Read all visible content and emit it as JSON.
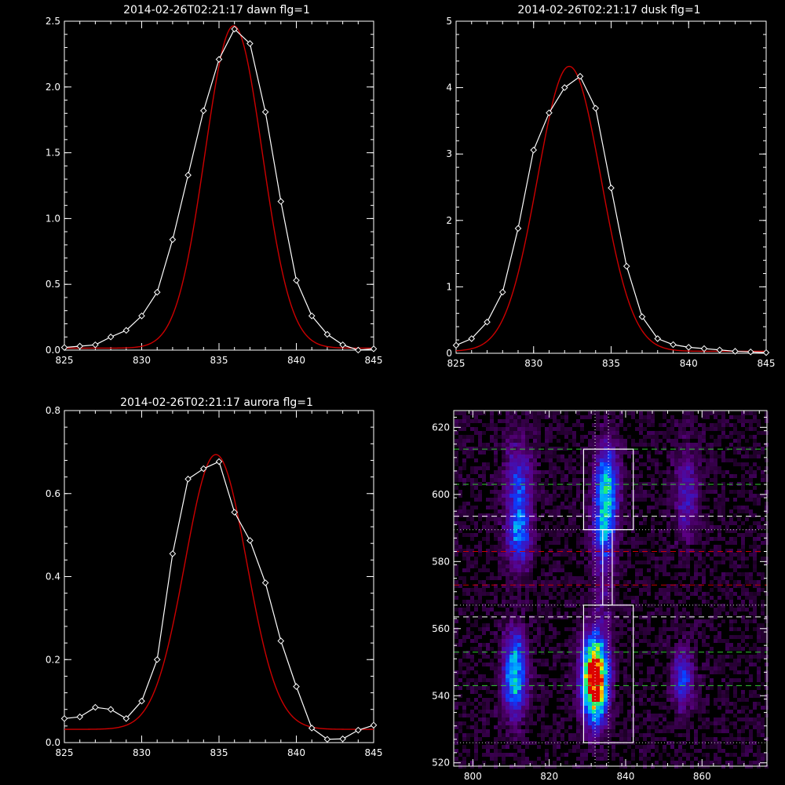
{
  "chart_data": [
    {
      "type": "line",
      "title": "2014-02-26T02:21:17 dawn flg=1",
      "xlim": [
        825,
        845
      ],
      "ylim": [
        0,
        2.5
      ],
      "xticks": [
        825,
        830,
        835,
        840,
        845
      ],
      "yticks": [
        0.0,
        0.5,
        1.0,
        1.5,
        2.0,
        2.5
      ],
      "xticklabels": [
        "825",
        "830",
        "835",
        "840",
        "845"
      ],
      "yticklabels": [
        "0.0",
        "0.5",
        "1.0",
        "1.5",
        "2.0",
        "2.5"
      ],
      "colors": {
        "data": "#ffffff",
        "fit": "#cc0000"
      },
      "data_line": {
        "x": [
          825,
          826,
          827,
          828,
          829,
          830,
          831,
          832,
          833,
          834,
          835,
          836,
          837,
          838,
          839,
          840,
          841,
          842,
          843,
          844,
          845
        ],
        "y": [
          0.02,
          0.03,
          0.04,
          0.1,
          0.15,
          0.26,
          0.44,
          0.84,
          1.33,
          1.82,
          2.21,
          2.44,
          2.33,
          1.81,
          1.13,
          0.53,
          0.26,
          0.12,
          0.04,
          0.0,
          0.01
        ]
      },
      "fit": {
        "amplitude": 2.45,
        "center": 835.95,
        "sigma": 1.85,
        "baseline": 0.015
      }
    },
    {
      "type": "line",
      "title": "2014-02-26T02:21:17 dusk flg=1",
      "xlim": [
        825,
        845
      ],
      "ylim": [
        0,
        5
      ],
      "xticks": [
        825,
        830,
        835,
        840,
        845
      ],
      "yticks": [
        0,
        1,
        2,
        3,
        4,
        5
      ],
      "xticklabels": [
        "825",
        "830",
        "835",
        "840",
        "845"
      ],
      "yticklabels": [
        "0",
        "1",
        "2",
        "3",
        "4",
        "5"
      ],
      "colors": {
        "data": "#ffffff",
        "fit": "#cc0000"
      },
      "data_line": {
        "x": [
          825,
          826,
          827,
          828,
          829,
          830,
          831,
          832,
          833,
          834,
          835,
          836,
          837,
          838,
          839,
          840,
          841,
          842,
          843,
          844,
          845
        ],
        "y": [
          0.12,
          0.22,
          0.47,
          0.92,
          1.88,
          3.06,
          3.62,
          4.0,
          4.17,
          3.69,
          2.49,
          1.31,
          0.55,
          0.22,
          0.13,
          0.09,
          0.07,
          0.05,
          0.03,
          0.02,
          0.01
        ]
      },
      "fit": {
        "amplitude": 4.29,
        "center": 832.3,
        "sigma": 2.05,
        "baseline": 0.03
      }
    },
    {
      "type": "line",
      "title": "2014-02-26T02:21:17 aurora flg=1",
      "xlim": [
        825,
        845
      ],
      "ylim": [
        0,
        0.8
      ],
      "xticks": [
        825,
        830,
        835,
        840,
        845
      ],
      "yticks": [
        0.0,
        0.2,
        0.4,
        0.6,
        0.8
      ],
      "xticklabels": [
        "825",
        "830",
        "835",
        "840",
        "845"
      ],
      "yticklabels": [
        "0.0",
        "0.2",
        "0.4",
        "0.6",
        "0.8"
      ],
      "colors": {
        "data": "#ffffff",
        "fit": "#cc0000"
      },
      "data_line": {
        "x": [
          825,
          826,
          827,
          828,
          829,
          830,
          831,
          832,
          833,
          834,
          835,
          836,
          837,
          838,
          839,
          840,
          841,
          842,
          843,
          844,
          845
        ],
        "y": [
          0.058,
          0.062,
          0.085,
          0.08,
          0.058,
          0.1,
          0.2,
          0.455,
          0.635,
          0.66,
          0.677,
          0.555,
          0.487,
          0.385,
          0.245,
          0.135,
          0.035,
          0.008,
          0.009,
          0.03,
          0.042
        ]
      },
      "fit": {
        "amplitude": 0.662,
        "center": 834.8,
        "sigma": 2.0,
        "baseline": 0.032
      }
    },
    {
      "type": "heatmap",
      "title": "",
      "xlim": [
        795,
        877
      ],
      "ylim": [
        519,
        625
      ],
      "xticks": [
        800,
        820,
        840,
        860
      ],
      "yticks": [
        520,
        540,
        560,
        580,
        600,
        620
      ],
      "xticklabels": [
        "800",
        "820",
        "840",
        "860"
      ],
      "yticklabels": [
        "520",
        "540",
        "560",
        "580",
        "600",
        "620"
      ],
      "blobs": [
        {
          "x": 811,
          "y": 544,
          "sx": 2.2,
          "sy": 7,
          "amp": 0.58
        },
        {
          "x": 811,
          "y": 555,
          "sx": 2.0,
          "sy": 5,
          "amp": 0.25
        },
        {
          "x": 812,
          "y": 598,
          "sx": 2.4,
          "sy": 12,
          "amp": 0.42
        },
        {
          "x": 812,
          "y": 586,
          "sx": 2.2,
          "sy": 5,
          "amp": 0.2
        },
        {
          "x": 832,
          "y": 544,
          "sx": 2.4,
          "sy": 6,
          "amp": 1.0
        },
        {
          "x": 832,
          "y": 553,
          "sx": 2.3,
          "sy": 6,
          "amp": 0.45
        },
        {
          "x": 832,
          "y": 534,
          "sx": 2.0,
          "sy": 5,
          "amp": 0.3
        },
        {
          "x": 835,
          "y": 602,
          "sx": 2.1,
          "sy": 9,
          "amp": 0.6
        },
        {
          "x": 834,
          "y": 588,
          "sx": 2.0,
          "sy": 7,
          "amp": 0.35
        },
        {
          "x": 834,
          "y": 570,
          "sx": 2.0,
          "sy": 8,
          "amp": 0.12
        },
        {
          "x": 855,
          "y": 545,
          "sx": 2.0,
          "sy": 6,
          "amp": 0.38
        },
        {
          "x": 856,
          "y": 600,
          "sx": 2.2,
          "sy": 9,
          "amp": 0.28
        }
      ],
      "hlines": [
        {
          "y": 613.5,
          "color": "#33cc33",
          "style": "dashed"
        },
        {
          "y": 603,
          "color": "#33cc33",
          "style": "dashed"
        },
        {
          "y": 593.5,
          "color": "#ffffff",
          "style": "dashed"
        },
        {
          "y": 589.5,
          "color": "#cccccc",
          "style": "dotted"
        },
        {
          "y": 583,
          "color": "#cc0000",
          "style": "dashed"
        },
        {
          "y": 573,
          "color": "#cc0000",
          "style": "dashed"
        },
        {
          "y": 567,
          "color": "#cccccc",
          "style": "dotted"
        },
        {
          "y": 563.5,
          "color": "#ffffff",
          "style": "dashed"
        },
        {
          "y": 553,
          "color": "#33cc33",
          "style": "dashed"
        },
        {
          "y": 543,
          "color": "#33cc33",
          "style": "dashed"
        },
        {
          "y": 526,
          "color": "#cccccc",
          "style": "dotted"
        }
      ],
      "vlines": [
        {
          "x": 832,
          "color": "#ffffff",
          "style": "dotted"
        },
        {
          "x": 835.5,
          "color": "#ffffff",
          "style": "dotted"
        }
      ],
      "boxes": [
        {
          "x0": 829,
          "x1": 842,
          "y0": 589.5,
          "y1": 613.5
        },
        {
          "x0": 829,
          "x1": 842,
          "y0": 526,
          "y1": 567
        },
        {
          "x0": 834,
          "x1": 836.5,
          "y0": 567,
          "y1": 589.5
        }
      ]
    }
  ]
}
